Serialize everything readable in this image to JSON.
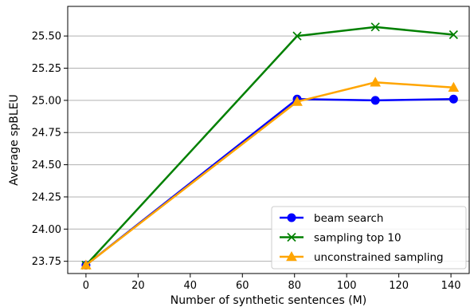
{
  "chart_data": {
    "type": "line",
    "xlabel": "Number of synthetic sentences (M)",
    "ylabel": "Average spBLEU",
    "xlim": [
      -7,
      147
    ],
    "ylim": [
      23.655,
      25.73
    ],
    "xticks": [
      0,
      20,
      40,
      60,
      80,
      100,
      120,
      140
    ],
    "yticks": [
      23.75,
      24.0,
      24.25,
      24.5,
      24.75,
      25.0,
      25.25,
      25.5
    ],
    "ytick_labels": [
      "23.75",
      "24.00",
      "24.25",
      "24.50",
      "24.75",
      "25.00",
      "25.25",
      "25.50"
    ],
    "grid": "y-major",
    "legend_position": "bottom-right",
    "series": [
      {
        "name": "beam search",
        "color": "#0000ff",
        "marker": "circle",
        "x": [
          0,
          81,
          111,
          141
        ],
        "y": [
          23.72,
          25.01,
          25.0,
          25.01
        ]
      },
      {
        "name": "sampling top 10",
        "color": "#008000",
        "marker": "x",
        "x": [
          0,
          81,
          111,
          141
        ],
        "y": [
          23.72,
          25.5,
          25.57,
          25.51
        ]
      },
      {
        "name": "unconstrained sampling",
        "color": "#ffa500",
        "marker": "triangle",
        "x": [
          0,
          81,
          111,
          141
        ],
        "y": [
          23.72,
          24.99,
          25.14,
          25.1
        ]
      }
    ]
  }
}
